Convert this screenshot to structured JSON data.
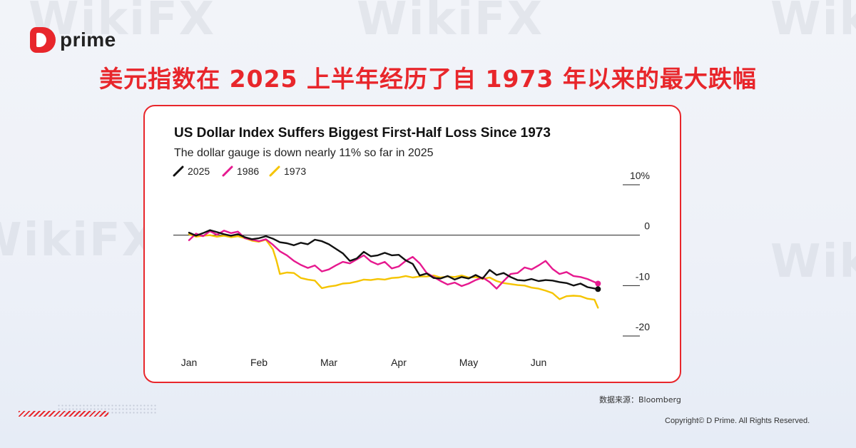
{
  "brand": {
    "name": "prime"
  },
  "headline": "美元指数在 2025 上半年经历了自 1973 年以来的最大跌幅",
  "watermark_text": "WikiFX",
  "source_text": "数据来源：Bloomberg",
  "copyright_text": "Copyright© D Prime. All Rights Reserved.",
  "colors": {
    "accent": "#e8262b",
    "s2025": "#111111",
    "s1986": "#e6198f",
    "s1973": "#f5c400"
  },
  "chart_data": {
    "type": "line",
    "title": "US Dollar Index Suffers Biggest First-Half Loss Since 1973",
    "subtitle": "The dollar gauge is down nearly 11% so far in 2025",
    "legend_position": "top-left",
    "x_ticks": [
      "Jan",
      "Feb",
      "Mar",
      "Apr",
      "May",
      "Jun"
    ],
    "xlim": [
      0,
      6
    ],
    "y_ticks": [
      10,
      0,
      -10,
      -20
    ],
    "y_tick_labels": [
      "10%",
      "0",
      "-10",
      "-20"
    ],
    "ylim": [
      -20,
      10
    ],
    "zero_line": true,
    "grid": false,
    "series": [
      {
        "name": "1973",
        "color": "#f5c400",
        "x": [
          0,
          0.1,
          0.2,
          0.3,
          0.4,
          0.5,
          0.6,
          0.7,
          0.8,
          0.9,
          1.0,
          1.1,
          1.2,
          1.25,
          1.3,
          1.4,
          1.5,
          1.6,
          1.7,
          1.8,
          1.9,
          2.0,
          2.1,
          2.2,
          2.3,
          2.4,
          2.5,
          2.6,
          2.7,
          2.8,
          2.9,
          3.0,
          3.1,
          3.2,
          3.3,
          3.4,
          3.5,
          3.6,
          3.7,
          3.8,
          3.9,
          4.0,
          4.1,
          4.2,
          4.3,
          4.4,
          4.5,
          4.6,
          4.7,
          4.8,
          4.9,
          5.0,
          5.1,
          5.2,
          5.3,
          5.4,
          5.5,
          5.6,
          5.7,
          5.8,
          5.85
        ],
        "y": [
          0.2,
          -0.3,
          -0.1,
          0,
          -0.3,
          -0.1,
          -0.4,
          -0.2,
          -0.6,
          -1.1,
          -1.3,
          -0.9,
          -2.8,
          -5.0,
          -7.7,
          -7.4,
          -7.5,
          -8.5,
          -8.8,
          -9.0,
          -10.5,
          -10.2,
          -10.0,
          -9.6,
          -9.5,
          -9.2,
          -8.8,
          -8.9,
          -8.7,
          -8.8,
          -8.5,
          -8.4,
          -8.1,
          -8.4,
          -8.2,
          -8.2,
          -8.0,
          -8.4,
          -8.2,
          -8.3,
          -8.0,
          -8.4,
          -8.3,
          -8.7,
          -8.4,
          -9.1,
          -9.5,
          -9.7,
          -9.9,
          -10.0,
          -10.4,
          -10.6,
          -11.0,
          -11.5,
          -12.7,
          -12.1,
          -12.0,
          -12.1,
          -12.6,
          -12.8,
          -14.4
        ]
      },
      {
        "name": "1986",
        "color": "#e6198f",
        "x": [
          0,
          0.1,
          0.2,
          0.3,
          0.4,
          0.5,
          0.6,
          0.7,
          0.8,
          0.9,
          1.0,
          1.1,
          1.2,
          1.3,
          1.4,
          1.5,
          1.6,
          1.7,
          1.8,
          1.9,
          2.0,
          2.1,
          2.2,
          2.3,
          2.4,
          2.5,
          2.6,
          2.7,
          2.8,
          2.9,
          3.0,
          3.1,
          3.2,
          3.3,
          3.4,
          3.5,
          3.6,
          3.7,
          3.8,
          3.9,
          4.0,
          4.1,
          4.2,
          4.3,
          4.4,
          4.5,
          4.6,
          4.7,
          4.8,
          4.9,
          5.0,
          5.1,
          5.2,
          5.3,
          5.4,
          5.5,
          5.6,
          5.7,
          5.85
        ],
        "y": [
          -1.0,
          0.3,
          -0.2,
          0.8,
          0.1,
          0.9,
          0.4,
          0.7,
          -0.6,
          -0.9,
          -1.2,
          -0.8,
          -1.9,
          -3.2,
          -4.0,
          -5.1,
          -5.9,
          -6.5,
          -6.0,
          -7.2,
          -6.8,
          -6.0,
          -5.3,
          -5.6,
          -4.8,
          -4.0,
          -5.2,
          -5.8,
          -5.3,
          -6.6,
          -6.2,
          -5.1,
          -4.3,
          -5.6,
          -7.5,
          -8.3,
          -9.1,
          -9.8,
          -9.4,
          -10.1,
          -9.6,
          -8.9,
          -8.4,
          -9.3,
          -10.6,
          -9.1,
          -7.7,
          -7.5,
          -6.4,
          -6.8,
          -6.0,
          -5.1,
          -6.7,
          -7.7,
          -7.3,
          -8.1,
          -8.3,
          -8.7,
          -9.6
        ]
      },
      {
        "name": "2025",
        "color": "#111111",
        "x": [
          0,
          0.1,
          0.2,
          0.3,
          0.4,
          0.5,
          0.6,
          0.7,
          0.8,
          0.9,
          1.0,
          1.1,
          1.2,
          1.3,
          1.4,
          1.5,
          1.6,
          1.7,
          1.8,
          1.9,
          2.0,
          2.1,
          2.2,
          2.3,
          2.4,
          2.5,
          2.6,
          2.7,
          2.8,
          2.9,
          3.0,
          3.1,
          3.2,
          3.3,
          3.4,
          3.5,
          3.6,
          3.7,
          3.8,
          3.9,
          4.0,
          4.1,
          4.2,
          4.3,
          4.4,
          4.5,
          4.6,
          4.7,
          4.8,
          4.9,
          5.0,
          5.1,
          5.2,
          5.3,
          5.4,
          5.5,
          5.6,
          5.7,
          5.85
        ],
        "y": [
          0.5,
          -0.1,
          0.4,
          1.0,
          0.6,
          0.2,
          -0.1,
          0.2,
          -0.4,
          -0.8,
          -0.6,
          -0.2,
          -0.7,
          -1.4,
          -1.6,
          -2.0,
          -1.5,
          -1.8,
          -0.9,
          -1.2,
          -1.8,
          -2.7,
          -3.6,
          -5.1,
          -4.6,
          -3.3,
          -4.2,
          -4.0,
          -3.5,
          -4.0,
          -3.9,
          -5.0,
          -5.7,
          -8.0,
          -7.6,
          -8.5,
          -8.6,
          -8.1,
          -8.8,
          -8.3,
          -8.6,
          -7.9,
          -8.6,
          -6.9,
          -7.9,
          -7.5,
          -8.3,
          -8.9,
          -9.0,
          -8.7,
          -9.1,
          -8.9,
          -9.0,
          -9.3,
          -9.5,
          -10.0,
          -9.6,
          -10.3,
          -10.7
        ]
      }
    ]
  }
}
